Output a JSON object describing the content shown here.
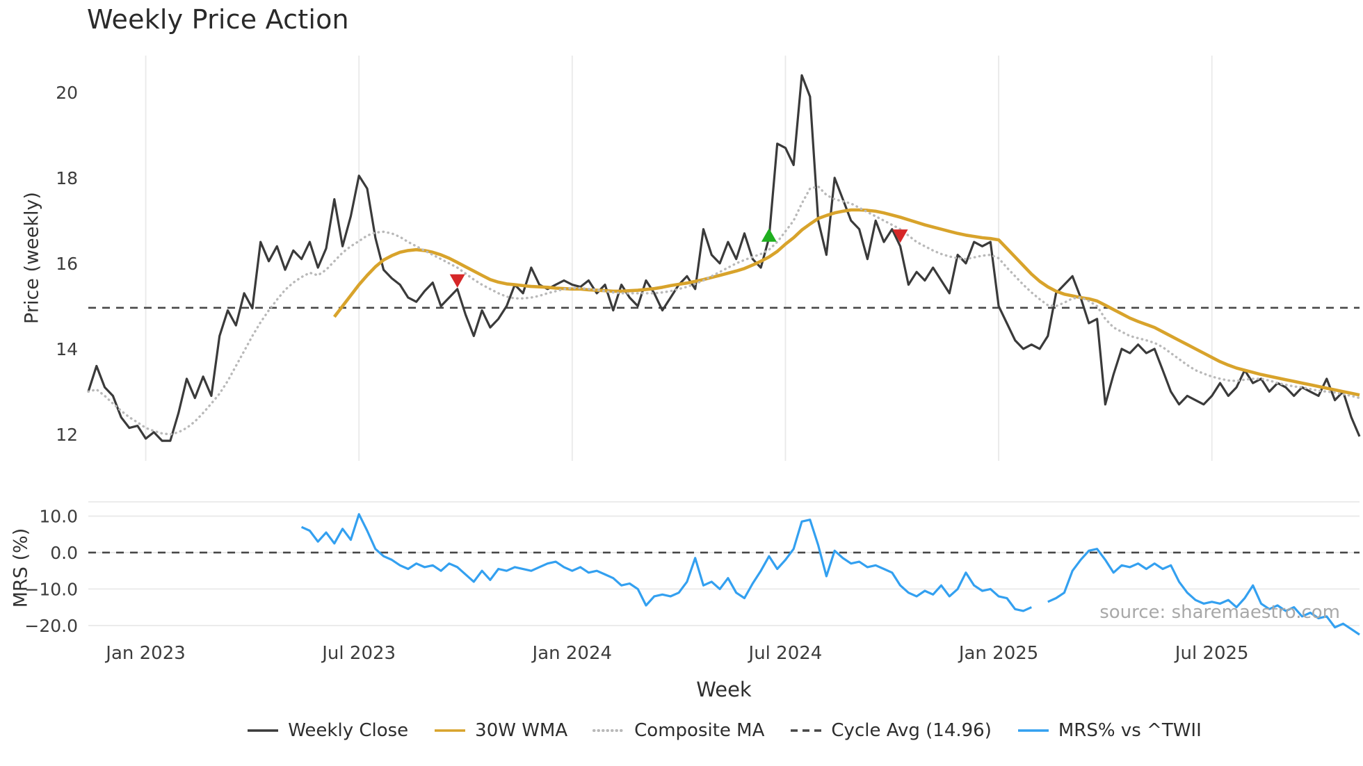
{
  "title": "Weekly Price Action",
  "source": "source: sharemaestro.com",
  "colors": {
    "close": "#3a3a3a",
    "wma": "#d8a32b",
    "composite": "#b9b9b9",
    "cycle": "#474747",
    "mrs": "#33a0f0",
    "buy": "#1faf1f",
    "sell": "#d62728",
    "grid": "#e9e9e9",
    "tick": "#3c3c3c"
  },
  "x_axis": {
    "label": "Week",
    "total_weeks": 156,
    "ticks": [
      {
        "week": 7,
        "label": "Jan 2023"
      },
      {
        "week": 33,
        "label": "Jul 2023"
      },
      {
        "week": 59,
        "label": "Jan 2024"
      },
      {
        "week": 85,
        "label": "Jul 2024"
      },
      {
        "week": 111,
        "label": "Jan 2025"
      },
      {
        "week": 137,
        "label": "Jul 2025"
      }
    ]
  },
  "chart_data": [
    {
      "type": "line",
      "panel": "price",
      "title": "Weekly Price Action",
      "ylabel": "Price (weekly)",
      "yticks": [
        12,
        14,
        16,
        18,
        20
      ],
      "ytick_labels": [
        "12",
        "14",
        "16",
        "18",
        "20"
      ],
      "ylim": [
        11.38,
        20.86
      ],
      "cycle_avg": 14.96,
      "grid": "vertical",
      "series": [
        {
          "name": "Weekly Close",
          "style": "solid",
          "color_key": "close",
          "width": 3.2,
          "start_week": 0,
          "values": [
            13.0,
            13.6,
            13.1,
            12.9,
            12.4,
            12.15,
            12.2,
            11.9,
            12.05,
            11.85,
            11.85,
            12.5,
            13.3,
            12.85,
            13.35,
            12.9,
            14.3,
            14.9,
            14.55,
            15.3,
            14.95,
            16.5,
            16.05,
            16.4,
            15.85,
            16.3,
            16.1,
            16.5,
            15.9,
            16.35,
            17.5,
            16.4,
            17.1,
            18.05,
            17.75,
            16.6,
            15.85,
            15.65,
            15.5,
            15.2,
            15.1,
            15.35,
            15.55,
            15.0,
            15.2,
            15.4,
            14.8,
            14.3,
            14.9,
            14.5,
            14.7,
            15.0,
            15.5,
            15.3,
            15.9,
            15.5,
            15.4,
            15.5,
            15.6,
            15.5,
            15.45,
            15.6,
            15.3,
            15.5,
            14.9,
            15.5,
            15.2,
            15.0,
            15.6,
            15.3,
            14.9,
            15.2,
            15.5,
            15.7,
            15.4,
            16.8,
            16.2,
            16.0,
            16.5,
            16.1,
            16.7,
            16.1,
            15.9,
            16.6,
            18.8,
            18.7,
            18.3,
            20.4,
            19.9,
            17.0,
            16.2,
            18.0,
            17.5,
            17.0,
            16.8,
            16.1,
            17.0,
            16.5,
            16.8,
            16.4,
            15.5,
            15.8,
            15.6,
            15.9,
            15.6,
            15.3,
            16.2,
            16.0,
            16.5,
            16.4,
            16.5,
            15.0,
            14.6,
            14.2,
            14.0,
            14.1,
            14.0,
            14.3,
            15.3,
            15.5,
            15.7,
            15.2,
            14.6,
            14.7,
            12.7,
            13.4,
            14.0,
            13.9,
            14.1,
            13.9,
            14.0,
            13.5,
            13.0,
            12.7,
            12.9,
            12.8,
            12.7,
            12.9,
            13.2,
            12.9,
            13.1,
            13.5,
            13.2,
            13.3,
            13.0,
            13.2,
            13.1,
            12.9,
            13.1,
            13.0,
            12.9,
            13.3,
            12.8,
            13.0,
            12.4,
            11.95
          ]
        },
        {
          "name": "30W WMA",
          "style": "solid",
          "color_key": "wma",
          "width": 4.6,
          "start_week": 30,
          "values": [
            14.75,
            15.0,
            15.25,
            15.5,
            15.72,
            15.92,
            16.08,
            16.18,
            16.26,
            16.3,
            16.32,
            16.3,
            16.26,
            16.2,
            16.12,
            16.02,
            15.92,
            15.82,
            15.72,
            15.62,
            15.56,
            15.52,
            15.5,
            15.48,
            15.46,
            15.45,
            15.44,
            15.42,
            15.41,
            15.4,
            15.4,
            15.38,
            15.37,
            15.36,
            15.35,
            15.35,
            15.36,
            15.37,
            15.39,
            15.41,
            15.44,
            15.48,
            15.51,
            15.54,
            15.58,
            15.62,
            15.67,
            15.72,
            15.77,
            15.82,
            15.88,
            15.96,
            16.05,
            16.15,
            16.28,
            16.45,
            16.6,
            16.78,
            16.92,
            17.05,
            17.12,
            17.18,
            17.22,
            17.25,
            17.25,
            17.24,
            17.22,
            17.18,
            17.13,
            17.08,
            17.02,
            16.96,
            16.9,
            16.85,
            16.8,
            16.75,
            16.7,
            16.66,
            16.63,
            16.6,
            16.58,
            16.55,
            16.35,
            16.15,
            15.95,
            15.75,
            15.58,
            15.45,
            15.35,
            15.28,
            15.24,
            15.2,
            15.17,
            15.12,
            15.02,
            14.92,
            14.82,
            14.72,
            14.64,
            14.57,
            14.5,
            14.4,
            14.3,
            14.2,
            14.1,
            14.0,
            13.9,
            13.8,
            13.7,
            13.62,
            13.55,
            13.5,
            13.45,
            13.4,
            13.36,
            13.32,
            13.28,
            13.24,
            13.2,
            13.16,
            13.12,
            13.08,
            13.04,
            13.0,
            12.96,
            12.92
          ]
        },
        {
          "name": "Composite MA",
          "style": "dotted",
          "color_key": "composite",
          "width": 3.4,
          "start_week": 0,
          "values": [
            13.0,
            13.05,
            12.9,
            12.72,
            12.55,
            12.4,
            12.28,
            12.15,
            12.08,
            12.02,
            12.0,
            12.05,
            12.15,
            12.3,
            12.5,
            12.72,
            12.95,
            13.25,
            13.6,
            13.95,
            14.3,
            14.62,
            14.9,
            15.15,
            15.38,
            15.55,
            15.68,
            15.78,
            15.72,
            15.85,
            16.05,
            16.25,
            16.4,
            16.52,
            16.65,
            16.72,
            16.74,
            16.7,
            16.62,
            16.5,
            16.4,
            16.3,
            16.2,
            16.1,
            16.0,
            15.9,
            15.76,
            15.62,
            15.5,
            15.4,
            15.3,
            15.22,
            15.18,
            15.18,
            15.2,
            15.24,
            15.3,
            15.35,
            15.4,
            15.42,
            15.42,
            15.4,
            15.38,
            15.35,
            15.32,
            15.3,
            15.3,
            15.3,
            15.3,
            15.3,
            15.32,
            15.35,
            15.4,
            15.45,
            15.52,
            15.6,
            15.7,
            15.8,
            15.9,
            16.0,
            16.08,
            16.15,
            16.22,
            16.32,
            16.5,
            16.75,
            17.0,
            17.4,
            17.75,
            17.8,
            17.6,
            17.5,
            17.45,
            17.4,
            17.3,
            17.2,
            17.1,
            17.0,
            16.9,
            16.8,
            16.65,
            16.5,
            16.4,
            16.3,
            16.22,
            16.16,
            16.12,
            16.1,
            16.14,
            16.18,
            16.2,
            16.12,
            15.9,
            15.7,
            15.5,
            15.32,
            15.16,
            15.02,
            15.0,
            15.08,
            15.18,
            15.2,
            15.12,
            15.0,
            14.7,
            14.5,
            14.4,
            14.3,
            14.25,
            14.2,
            14.14,
            14.04,
            13.9,
            13.76,
            13.62,
            13.5,
            13.42,
            13.35,
            13.3,
            13.26,
            13.25,
            13.28,
            13.3,
            13.3,
            13.26,
            13.2,
            13.16,
            13.12,
            13.1,
            13.06,
            13.02,
            13.0,
            12.98,
            12.94,
            12.9,
            12.85
          ]
        }
      ],
      "markers": [
        {
          "type": "sell",
          "week": 45,
          "value": 15.6
        },
        {
          "type": "buy",
          "week": 83,
          "value": 16.65
        },
        {
          "type": "sell",
          "week": 99,
          "value": 16.65
        }
      ]
    },
    {
      "type": "line",
      "panel": "mrs",
      "ylabel": "MRS (%)",
      "yticks": [
        10,
        0,
        -10,
        -20
      ],
      "ytick_labels": [
        "10.0",
        "0.0",
        "−10.0",
        "−20.0"
      ],
      "ylim": [
        -22.5,
        13.9
      ],
      "zero_line": 0,
      "grid": "horizontal",
      "series": [
        {
          "name": "MRS% vs ^TWII",
          "style": "solid",
          "color_key": "mrs",
          "width": 3.2,
          "start_week": 26,
          "values": [
            7.0,
            6.0,
            3.0,
            5.5,
            2.5,
            6.5,
            3.5,
            10.5,
            6.0,
            1.0,
            -1.0,
            -2.0,
            -3.5,
            -4.5,
            -3.0,
            -4.0,
            -3.5,
            -5.0,
            -3.0,
            -4.0,
            -6.0,
            -8.0,
            -5.0,
            -7.5,
            -4.5,
            -5.0,
            -4.0,
            -4.5,
            -5.0,
            -4.0,
            -3.0,
            -2.5,
            -4.0,
            -5.0,
            -4.0,
            -5.5,
            -5.0,
            -6.0,
            -7.0,
            -9.0,
            -8.5,
            -10.0,
            -14.5,
            -12.0,
            -11.5,
            -12.0,
            -11.0,
            -8.0,
            -1.5,
            -9.0,
            -8.0,
            -10.0,
            -7.0,
            -11.0,
            -12.5,
            -8.5,
            -5.0,
            -1.0,
            -4.5,
            -2.0,
            1.0,
            8.5,
            9.0,
            2.0,
            -6.5,
            0.5,
            -1.5,
            -3.0,
            -2.5,
            -4.0,
            -3.5,
            -4.5,
            -5.5,
            -9.0,
            -11.0,
            -12.0,
            -10.5,
            -11.5,
            -9.0,
            -12.0,
            -10.0,
            -5.5,
            -9.0,
            -10.5,
            -10.0,
            -12.0,
            -12.5,
            -15.5,
            -16.0,
            -15.0,
            null,
            -13.5,
            -12.5,
            -11.0,
            -5.0,
            -2.0,
            0.5,
            1.0,
            -2.0,
            -5.5,
            -3.5,
            -4.0,
            -3.0,
            -4.5,
            -3.0,
            -4.5,
            -3.5,
            -8.0,
            -11.0,
            -13.0,
            -14.0,
            -13.5,
            -14.0,
            -13.0,
            -15.0,
            -12.5,
            -9.0,
            -14.0,
            -15.5,
            -14.5,
            -16.0,
            -15.0,
            -17.5,
            -16.5,
            -18.0,
            -17.5,
            -20.5,
            -19.5,
            -21.0,
            -22.5
          ]
        }
      ]
    }
  ],
  "legend": [
    {
      "label": "Weekly Close",
      "swatch": "solid",
      "color_key": "close"
    },
    {
      "label": "30W WMA",
      "swatch": "solid",
      "color_key": "wma"
    },
    {
      "label": "Composite MA",
      "swatch": "dotted",
      "color_key": "composite"
    },
    {
      "label": "Cycle Avg (14.96)",
      "swatch": "dashed",
      "color_key": "cycle"
    },
    {
      "label": "MRS% vs ^TWII",
      "swatch": "solid",
      "color_key": "mrs"
    }
  ]
}
